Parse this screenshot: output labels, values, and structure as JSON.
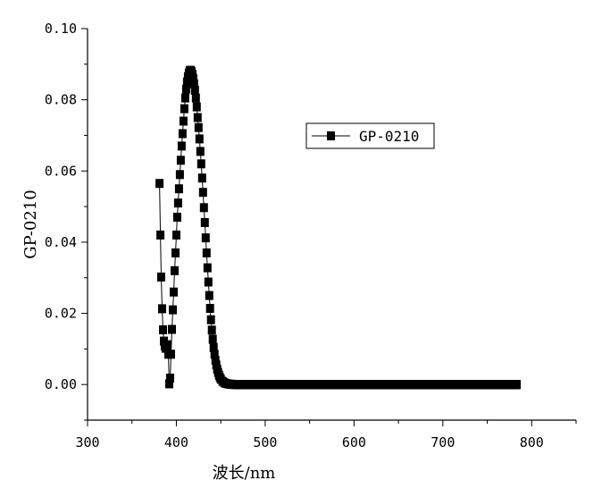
{
  "chart_data": {
    "type": "line",
    "xlabel": "波长/nm",
    "ylabel": "GP-0210",
    "xlim": [
      300,
      850
    ],
    "ylim": [
      -0.01,
      0.1
    ],
    "xticks": [
      "300",
      "400",
      "500",
      "600",
      "700",
      "800"
    ],
    "yticks": [
      "0.00",
      "0.02",
      "0.04",
      "0.06",
      "0.08",
      "0.10"
    ],
    "grid": false,
    "legend_position": "top-right",
    "series": [
      {
        "name": "GP-0210",
        "marker": "square",
        "color": "#000000",
        "x": [
          381,
          382,
          383,
          384,
          385,
          386,
          387,
          388,
          389,
          390,
          391,
          392,
          393,
          394,
          395,
          396,
          397,
          398,
          399,
          400,
          401,
          402,
          403,
          404,
          405,
          406,
          407,
          408,
          409,
          410,
          411,
          412,
          413,
          414,
          415,
          416,
          417,
          418,
          419,
          420,
          421,
          422,
          423,
          424,
          425,
          426,
          427,
          428,
          429,
          430,
          431,
          432,
          433,
          434,
          435,
          436,
          437,
          438,
          439,
          440,
          441,
          442,
          443,
          444,
          445,
          446,
          447,
          448,
          449,
          450,
          452,
          454,
          456,
          458,
          460,
          462,
          464,
          466,
          468,
          470,
          473,
          476,
          480,
          485,
          490,
          500,
          520,
          540,
          560,
          580,
          600,
          620,
          640,
          660,
          680,
          700,
          720,
          740,
          760,
          783
        ],
        "y": [
          0.0565,
          0.042,
          0.0302,
          0.0213,
          0.0154,
          0.0122,
          0.0108,
          0.0102,
          0.0105,
          0.0112,
          0.0085,
          0.0002,
          0.0018,
          0.0085,
          0.0155,
          0.021,
          0.026,
          0.032,
          0.037,
          0.042,
          0.047,
          0.051,
          0.055,
          0.059,
          0.063,
          0.067,
          0.0705,
          0.074,
          0.0775,
          0.0805,
          0.083,
          0.085,
          0.0865,
          0.0875,
          0.0882,
          0.0883,
          0.088,
          0.0872,
          0.086,
          0.0845,
          0.0827,
          0.0805,
          0.078,
          0.075,
          0.0722,
          0.069,
          0.0655,
          0.062,
          0.058,
          0.054,
          0.0497,
          0.0455,
          0.0412,
          0.037,
          0.0328,
          0.0288,
          0.025,
          0.0214,
          0.0182,
          0.0153,
          0.0127,
          0.0104,
          0.0085,
          0.0068,
          0.0055,
          0.0043,
          0.0034,
          0.0026,
          0.002,
          0.0015,
          0.0009,
          0.0005,
          0.0003,
          0.0002,
          0.0001,
          0.0001,
          0,
          0,
          0,
          0,
          0,
          0,
          0,
          0,
          0,
          0,
          0,
          0,
          0,
          0,
          0,
          0,
          0,
          0,
          0,
          0,
          0,
          0,
          0,
          0
        ]
      }
    ]
  }
}
